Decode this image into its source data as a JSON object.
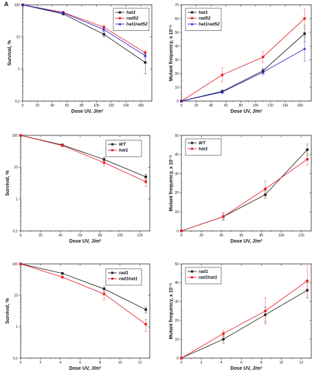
{
  "chart_data": [
    {
      "panel_label": "A",
      "type": "line",
      "yscale": "log",
      "xlabel": "Dose UV, J/m²",
      "ylabel": "Survival, %",
      "xlim": [
        0,
        175
      ],
      "ylim": [
        0.1,
        100
      ],
      "xticks": [
        0,
        20,
        40,
        60,
        80,
        100,
        120,
        140,
        160
      ],
      "yticks": [
        0.1,
        1,
        10,
        100
      ],
      "ytick_labels": [
        "0,1",
        "1",
        "10",
        "100"
      ],
      "legend": "top-right",
      "series": [
        {
          "name": "hat1",
          "color": "#222222",
          "marker": "square",
          "x": [
            0,
            55,
            110,
            166
          ],
          "y": [
            100,
            52,
            12,
            1.6
          ],
          "err": [
            0,
            4,
            2,
            0.9
          ]
        },
        {
          "name": "rad52",
          "color": "#e8262c",
          "marker": "circle",
          "x": [
            0,
            55,
            110,
            166
          ],
          "y": [
            100,
            58,
            20,
            3.2
          ],
          "err": [
            0,
            4,
            3,
            0.5
          ]
        },
        {
          "name": "hat1rad52",
          "color": "#2424c8",
          "marker": "triangle",
          "x": [
            0,
            55,
            110,
            166
          ],
          "y": [
            100,
            56,
            17,
            2.6
          ],
          "err": [
            0,
            3,
            2,
            0.4
          ]
        }
      ]
    },
    {
      "panel_label": "",
      "type": "line",
      "yscale": "linear",
      "xlabel": "Dose UV, J/m²",
      "ylabel": "Mutant frequency, x 10⁻⁶",
      "xlim": [
        0,
        175
      ],
      "ylim": [
        0,
        70
      ],
      "xticks": [
        0,
        20,
        40,
        60,
        80,
        100,
        120,
        140,
        160
      ],
      "yticks": [
        0,
        10,
        20,
        30,
        40,
        50,
        60,
        70
      ],
      "legend": "top-left",
      "series": [
        {
          "name": "hat1",
          "color": "#222222",
          "marker": "square",
          "x": [
            0,
            55,
            110,
            166
          ],
          "y": [
            0,
            7,
            22,
            49
          ],
          "err": [
            0,
            1,
            2,
            6
          ]
        },
        {
          "name": "rad52",
          "color": "#e8262c",
          "marker": "circle",
          "x": [
            0,
            55,
            110,
            166
          ],
          "y": [
            0,
            19,
            32,
            60
          ],
          "err": [
            0,
            5,
            4,
            7
          ]
        },
        {
          "name": "hat1rad52",
          "color": "#2424c8",
          "marker": "triangle",
          "x": [
            0,
            55,
            110,
            166
          ],
          "y": [
            0,
            6.5,
            21,
            38
          ],
          "err": [
            0,
            1,
            2,
            9
          ]
        }
      ]
    },
    {
      "panel_label": "B",
      "type": "line",
      "yscale": "log",
      "xlabel": "Dose UV, J/m²",
      "ylabel": "Survival, %",
      "xlim": [
        0,
        130
      ],
      "ylim": [
        0.1,
        100
      ],
      "xticks": [
        0,
        20,
        40,
        60,
        80,
        100,
        120
      ],
      "yticks": [
        0.1,
        1,
        10,
        100
      ],
      "ytick_labels": [
        "0,1",
        "1",
        "10",
        "100"
      ],
      "legend": "top-right",
      "series": [
        {
          "name": "WT",
          "color": "#222222",
          "marker": "square",
          "x": [
            0,
            42,
            84,
            126
          ],
          "y": [
            100,
            50,
            17.5,
            5
          ],
          "err": [
            0,
            4,
            3,
            1
          ]
        },
        {
          "name": "hat1",
          "color": "#e8262c",
          "marker": "circle",
          "x": [
            0,
            42,
            84,
            126
          ],
          "y": [
            100,
            48,
            14,
            3.5
          ],
          "err": [
            0,
            4,
            3,
            1
          ]
        }
      ]
    },
    {
      "panel_label": "",
      "type": "line",
      "yscale": "linear",
      "xlabel": "Dose UV, J/m²",
      "ylabel": "Mutant frequency, x 10⁻⁶",
      "xlim": [
        0,
        130
      ],
      "ylim": [
        0,
        50
      ],
      "xticks": [
        0,
        20,
        40,
        60,
        80,
        100,
        120
      ],
      "yticks": [
        0,
        10,
        20,
        30,
        40,
        50
      ],
      "legend": "top-left",
      "series": [
        {
          "name": "WT",
          "color": "#222222",
          "marker": "square",
          "x": [
            0,
            42,
            84,
            126
          ],
          "y": [
            0,
            7.5,
            19,
            42.5
          ],
          "err": [
            0,
            1.5,
            2,
            3
          ]
        },
        {
          "name": "hat1",
          "color": "#e8262c",
          "marker": "circle",
          "x": [
            0,
            42,
            84,
            126
          ],
          "y": [
            0,
            7.5,
            22,
            37.5
          ],
          "err": [
            0,
            2,
            4,
            3
          ]
        }
      ]
    },
    {
      "panel_label": "C",
      "type": "line",
      "yscale": "log",
      "xlabel": "Dose UV, J/m²",
      "ylabel": "Survival, %",
      "xlim": [
        0,
        13
      ],
      "ylim": [
        0.1,
        100
      ],
      "xticks": [
        0,
        2,
        4,
        6,
        8,
        10,
        12
      ],
      "yticks": [
        0.1,
        1,
        10,
        100
      ],
      "ytick_labels": [
        "0,1",
        "1",
        "10",
        "100"
      ],
      "legend": "top-right",
      "series": [
        {
          "name": "rad1",
          "color": "#222222",
          "marker": "square",
          "x": [
            0,
            4.2,
            8.4,
            12.6
          ],
          "y": [
            100,
            50,
            16,
            3.5
          ],
          "err": [
            0,
            4,
            3,
            0.8
          ]
        },
        {
          "name": "rad1hat1",
          "color": "#e8262c",
          "marker": "circle",
          "x": [
            0,
            4.2,
            8.4,
            12.6
          ],
          "y": [
            100,
            38,
            11,
            1.2
          ],
          "err": [
            0,
            3,
            4,
            0.5
          ]
        }
      ]
    },
    {
      "panel_label": "",
      "type": "line",
      "yscale": "linear",
      "xlabel": "Dose UV, J/m²",
      "ylabel": "Mutant frequency, x 10⁻⁶",
      "xlim": [
        0,
        13
      ],
      "ylim": [
        0,
        50
      ],
      "xticks": [
        0,
        2,
        4,
        6,
        8,
        10,
        12
      ],
      "yticks": [
        0,
        10,
        20,
        30,
        40,
        50
      ],
      "legend": "top-left",
      "series": [
        {
          "name": "rad1",
          "color": "#222222",
          "marker": "square",
          "x": [
            0,
            4.2,
            8.4,
            12.6
          ],
          "y": [
            0,
            10,
            23,
            36
          ],
          "err": [
            0,
            2,
            4,
            4
          ]
        },
        {
          "name": "rad1hat1",
          "color": "#e8262c",
          "marker": "circle",
          "x": [
            0,
            4.2,
            8.4,
            12.6
          ],
          "y": [
            0,
            13,
            25,
            41
          ],
          "err": [
            0,
            1.5,
            7,
            9
          ]
        }
      ]
    }
  ]
}
